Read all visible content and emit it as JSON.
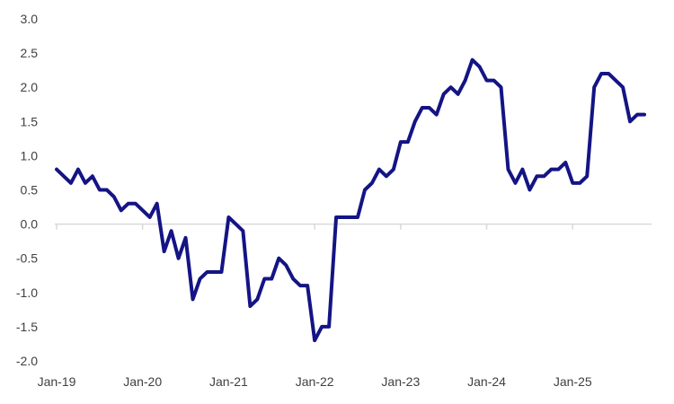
{
  "colors": {
    "line": "#141485",
    "axis": "#d9d9d9",
    "text": "#404040"
  },
  "chart_data": {
    "type": "line",
    "title": "",
    "xlabel": "",
    "ylabel": "",
    "grid": false,
    "ylim": [
      -2.0,
      3.0
    ],
    "y_ticks": [
      "3.0",
      "2.5",
      "2.0",
      "1.5",
      "1.0",
      "0.5",
      "0.0",
      "-0.5",
      "-1.0",
      "-1.5",
      "-2.0"
    ],
    "y_tick_values": [
      3.0,
      2.5,
      2.0,
      1.5,
      1.0,
      0.5,
      0.0,
      -0.5,
      -1.0,
      -1.5,
      -2.0
    ],
    "x_ticks": [
      "Jan-19",
      "Jan-20",
      "Jan-21",
      "Jan-22",
      "Jan-23",
      "Jan-24",
      "Jan-25"
    ],
    "x_tick_dates": [
      "2019-01",
      "2020-01",
      "2021-01",
      "2022-01",
      "2023-01",
      "2024-01",
      "2025-01"
    ],
    "x_range": [
      "2019-01",
      "2025-12"
    ],
    "series": [
      {
        "x": [
          "2019-01",
          "2019-02",
          "2019-03",
          "2019-04",
          "2019-05",
          "2019-06",
          "2019-07",
          "2019-08",
          "2019-09",
          "2019-10",
          "2019-11",
          "2019-12",
          "2020-01",
          "2020-02",
          "2020-03",
          "2020-04",
          "2020-05",
          "2020-06",
          "2020-07",
          "2020-08",
          "2020-09",
          "2020-10",
          "2020-11",
          "2020-12",
          "2021-01",
          "2021-02",
          "2021-03",
          "2021-04",
          "2021-05",
          "2021-06",
          "2021-07",
          "2021-08",
          "2021-09",
          "2021-10",
          "2021-11",
          "2021-12",
          "2022-01",
          "2022-02",
          "2022-03",
          "2022-04",
          "2022-05",
          "2022-06",
          "2022-07",
          "2022-08",
          "2022-09",
          "2022-10",
          "2022-11",
          "2022-12",
          "2023-01",
          "2023-02",
          "2023-03",
          "2023-04",
          "2023-05",
          "2023-06",
          "2023-07",
          "2023-08",
          "2023-09",
          "2023-10",
          "2023-11",
          "2023-12",
          "2024-01",
          "2024-02",
          "2024-03",
          "2024-04",
          "2024-05",
          "2024-06",
          "2024-07",
          "2024-08",
          "2024-09",
          "2024-10",
          "2024-11",
          "2024-12",
          "2025-01",
          "2025-02",
          "2025-03",
          "2025-04",
          "2025-05",
          "2025-06",
          "2025-07",
          "2025-08",
          "2025-09",
          "2025-10",
          "2025-11"
        ],
        "values": [
          0.8,
          0.7,
          0.6,
          0.8,
          0.6,
          0.7,
          0.5,
          0.5,
          0.4,
          0.2,
          0.3,
          0.3,
          0.2,
          0.1,
          0.3,
          -0.4,
          -0.1,
          -0.5,
          -0.2,
          -1.1,
          -0.8,
          -0.7,
          -0.7,
          -0.7,
          0.1,
          0.0,
          -0.1,
          -1.2,
          -1.1,
          -0.8,
          -0.8,
          -0.5,
          -0.6,
          -0.8,
          -0.9,
          -0.9,
          -1.7,
          -1.5,
          -1.5,
          0.1,
          0.1,
          0.1,
          0.1,
          0.5,
          0.6,
          0.8,
          0.7,
          0.8,
          1.2,
          1.2,
          1.5,
          1.7,
          1.7,
          1.6,
          1.9,
          2.0,
          1.9,
          2.1,
          2.4,
          2.3,
          2.1,
          2.1,
          2.0,
          0.8,
          0.6,
          0.8,
          0.5,
          0.7,
          0.7,
          0.8,
          0.8,
          0.9,
          0.6,
          0.6,
          0.7,
          2.0,
          2.2,
          2.2,
          2.1,
          2.0,
          1.5,
          1.6,
          1.6
        ]
      }
    ]
  }
}
